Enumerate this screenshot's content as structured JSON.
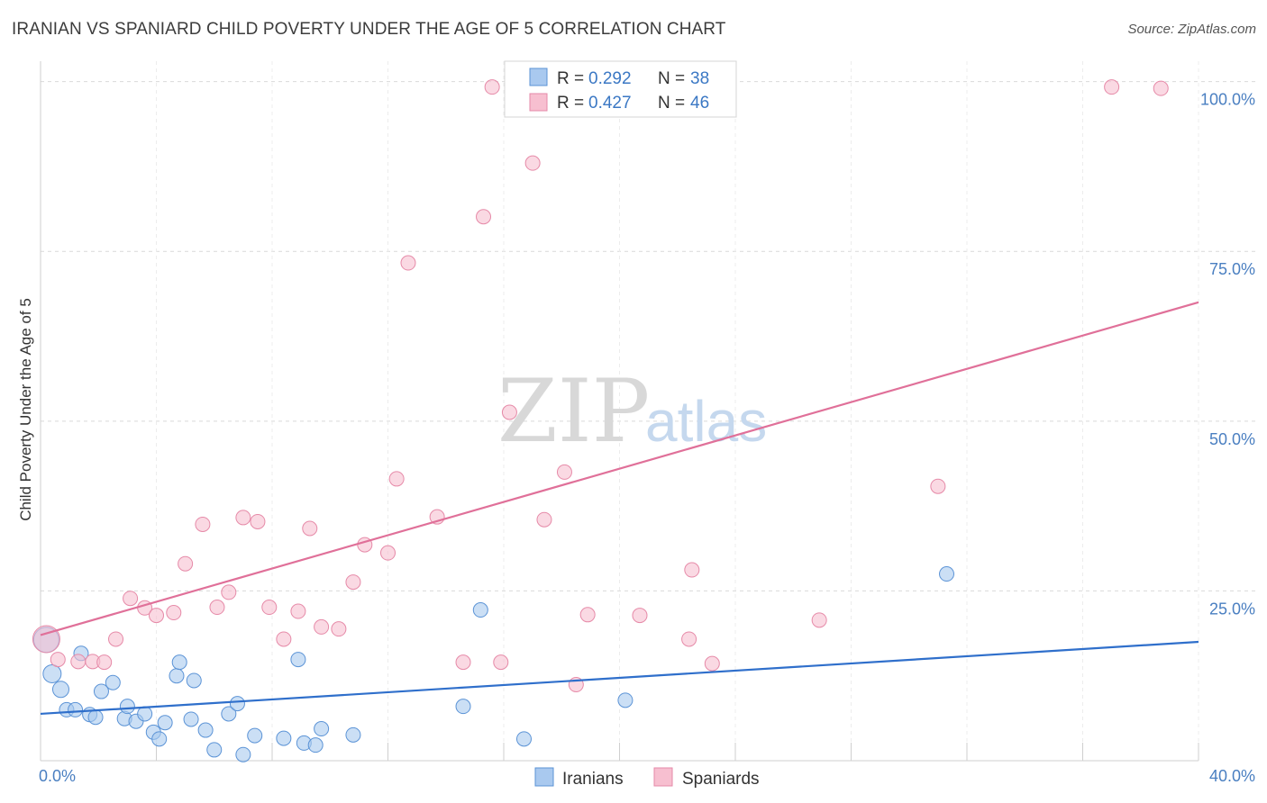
{
  "header": {
    "title": "IRANIAN VS SPANIARD CHILD POVERTY UNDER THE AGE OF 5 CORRELATION CHART",
    "source": "Source: ZipAtlas.com"
  },
  "watermark": {
    "zip": "ZIP",
    "atlas": "atlas"
  },
  "colors": {
    "iranians_fill": "#a9c9ef",
    "iranians_stroke": "#5b93d6",
    "iranians_line": "#2f6fcb",
    "spaniards_fill": "#f7bfd0",
    "spaniards_stroke": "#e68aa8",
    "spaniards_line": "#e07099",
    "grid": "#d9d9d9",
    "tick_text": "#4a7fc1"
  },
  "legend": {
    "iranians": {
      "r_label": "R =",
      "r_value": "0.292",
      "n_label": "N =",
      "n_value": "38"
    },
    "spaniards": {
      "r_label": "R =",
      "r_value": "0.427",
      "n_label": "N =",
      "n_value": "46"
    }
  },
  "bottom_legend": {
    "iranians": "Iranians",
    "spaniards": "Spaniards"
  },
  "chart_data": {
    "type": "scatter",
    "title": "IRANIAN VS SPANIARD CHILD POVERTY UNDER THE AGE OF 5 CORRELATION CHART",
    "xlabel": "",
    "ylabel": "Child Poverty Under the Age of 5",
    "xlim": [
      0,
      40
    ],
    "ylim": [
      0,
      103
    ],
    "x_tick_labels": [
      "0.0%",
      "40.0%"
    ],
    "y_ticks": [
      25,
      50,
      75,
      100
    ],
    "y_tick_labels": [
      "25.0%",
      "50.0%",
      "75.0%",
      "100.0%"
    ],
    "grid": true,
    "series": [
      {
        "name": "Iranians",
        "r": 0.292,
        "n": 38,
        "trend": {
          "x": [
            0,
            40
          ],
          "y": [
            6.9,
            17.5
          ]
        },
        "points": [
          [
            0.2,
            17.8,
            14
          ],
          [
            0.4,
            12.8,
            10
          ],
          [
            0.7,
            10.5,
            9
          ],
          [
            0.9,
            7.5,
            8
          ],
          [
            1.2,
            7.5,
            8
          ],
          [
            1.4,
            15.8,
            8
          ],
          [
            1.7,
            6.8,
            8
          ],
          [
            1.9,
            6.4,
            8
          ],
          [
            2.1,
            10.2,
            8
          ],
          [
            2.5,
            11.5,
            8
          ],
          [
            2.9,
            6.2,
            8
          ],
          [
            3.0,
            8.0,
            8
          ],
          [
            3.3,
            5.8,
            8
          ],
          [
            3.6,
            6.9,
            8
          ],
          [
            3.9,
            4.2,
            8
          ],
          [
            4.1,
            3.2,
            8
          ],
          [
            4.3,
            5.6,
            8
          ],
          [
            4.7,
            12.5,
            8
          ],
          [
            4.8,
            14.5,
            8
          ],
          [
            5.2,
            6.1,
            8
          ],
          [
            5.3,
            11.8,
            8
          ],
          [
            5.7,
            4.5,
            8
          ],
          [
            6.0,
            1.6,
            8
          ],
          [
            6.5,
            6.9,
            8
          ],
          [
            6.8,
            8.4,
            8
          ],
          [
            7.0,
            0.9,
            8
          ],
          [
            7.4,
            3.7,
            8
          ],
          [
            8.4,
            3.3,
            8
          ],
          [
            8.9,
            14.9,
            8
          ],
          [
            9.1,
            2.6,
            8
          ],
          [
            9.5,
            2.3,
            8
          ],
          [
            9.7,
            4.7,
            8
          ],
          [
            10.8,
            3.8,
            8
          ],
          [
            14.6,
            8.0,
            8
          ],
          [
            15.2,
            22.2,
            8
          ],
          [
            16.7,
            3.2,
            8
          ],
          [
            20.2,
            8.9,
            8
          ],
          [
            31.3,
            27.5,
            8
          ]
        ]
      },
      {
        "name": "Spaniards",
        "r": 0.427,
        "n": 46,
        "trend": {
          "x": [
            0,
            40
          ],
          "y": [
            18.5,
            67.5
          ]
        },
        "points": [
          [
            0.2,
            17.9,
            15
          ],
          [
            0.6,
            14.9,
            8
          ],
          [
            1.3,
            14.6,
            8
          ],
          [
            1.8,
            14.6,
            8
          ],
          [
            2.2,
            14.5,
            8
          ],
          [
            2.6,
            17.9,
            8
          ],
          [
            3.1,
            23.9,
            8
          ],
          [
            3.6,
            22.5,
            8
          ],
          [
            4.0,
            21.4,
            8
          ],
          [
            4.6,
            21.8,
            8
          ],
          [
            5.0,
            29.0,
            8
          ],
          [
            5.6,
            34.8,
            8
          ],
          [
            6.1,
            22.6,
            8
          ],
          [
            6.5,
            24.8,
            8
          ],
          [
            7.0,
            35.8,
            8
          ],
          [
            7.5,
            35.2,
            8
          ],
          [
            7.9,
            22.6,
            8
          ],
          [
            8.4,
            17.9,
            8
          ],
          [
            8.9,
            22.0,
            8
          ],
          [
            9.3,
            34.2,
            8
          ],
          [
            9.7,
            19.7,
            8
          ],
          [
            10.3,
            19.4,
            8
          ],
          [
            10.8,
            26.3,
            8
          ],
          [
            11.2,
            31.8,
            8
          ],
          [
            12.0,
            30.6,
            8
          ],
          [
            12.3,
            41.5,
            8
          ],
          [
            12.7,
            73.3,
            8
          ],
          [
            13.7,
            35.9,
            8
          ],
          [
            14.6,
            14.5,
            8
          ],
          [
            15.3,
            80.1,
            8
          ],
          [
            15.6,
            99.2,
            8
          ],
          [
            15.9,
            14.5,
            8
          ],
          [
            16.2,
            51.3,
            8
          ],
          [
            17.0,
            88.0,
            8
          ],
          [
            17.4,
            35.5,
            8
          ],
          [
            18.1,
            42.5,
            8
          ],
          [
            18.5,
            11.2,
            8
          ],
          [
            18.9,
            21.5,
            8
          ],
          [
            20.7,
            21.4,
            8
          ],
          [
            22.4,
            17.9,
            8
          ],
          [
            22.5,
            28.1,
            8
          ],
          [
            23.2,
            14.3,
            8
          ],
          [
            26.9,
            20.7,
            8
          ],
          [
            31.0,
            40.4,
            8
          ],
          [
            37.0,
            99.2,
            8
          ],
          [
            38.7,
            99.0,
            8
          ]
        ]
      }
    ]
  }
}
